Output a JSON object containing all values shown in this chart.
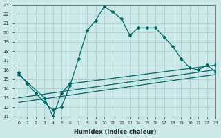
{
  "xlabel": "Humidex (Indice chaleur)",
  "bg_color": "#cce8e8",
  "grid_color": "#aacfcf",
  "line_color": "#006666",
  "xlim": [
    -0.5,
    23
  ],
  "ylim": [
    11,
    23
  ],
  "xticks": [
    0,
    1,
    2,
    3,
    4,
    5,
    6,
    7,
    8,
    9,
    10,
    11,
    12,
    13,
    14,
    15,
    16,
    17,
    18,
    19,
    20,
    21,
    22,
    23
  ],
  "yticks": [
    11,
    12,
    13,
    14,
    15,
    16,
    17,
    18,
    19,
    20,
    21,
    22,
    23
  ],
  "line1_x": [
    0,
    1,
    2,
    3,
    4,
    5,
    6,
    7,
    8,
    9,
    10,
    11,
    12,
    13,
    14,
    15,
    16,
    17,
    18,
    19,
    20,
    21,
    22,
    23
  ],
  "line1_y": [
    15.7,
    14.5,
    13.5,
    12.5,
    11.7,
    12.0,
    14.3,
    17.2,
    20.2,
    21.3,
    22.8,
    22.2,
    21.5,
    19.7,
    20.5,
    20.5,
    20.5,
    19.5,
    18.5,
    17.2,
    16.2,
    16.0,
    16.5,
    15.8
  ],
  "line2_x": [
    0,
    3,
    4,
    5,
    6,
    23
  ],
  "line2_y": [
    15.5,
    13.0,
    11.0,
    13.5,
    14.5,
    16.5
  ],
  "line3_x": [
    0,
    23
  ],
  "line3_y": [
    13.0,
    16.0
  ],
  "line4_x": [
    0,
    23
  ],
  "line4_y": [
    12.5,
    15.5
  ]
}
